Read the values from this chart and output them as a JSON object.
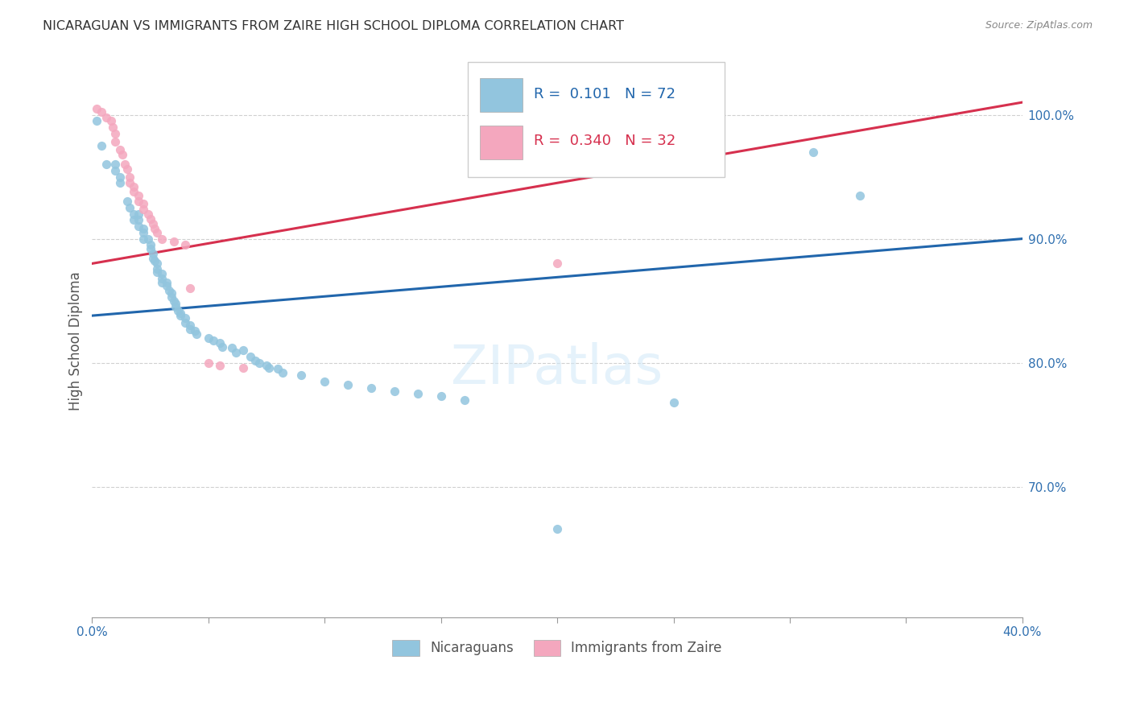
{
  "title": "NICARAGUAN VS IMMIGRANTS FROM ZAIRE HIGH SCHOOL DIPLOMA CORRELATION CHART",
  "source": "Source: ZipAtlas.com",
  "ylabel": "High School Diploma",
  "legend_blue_r": "0.101",
  "legend_blue_n": "72",
  "legend_pink_r": "0.340",
  "legend_pink_n": "32",
  "blue_color": "#92c5de",
  "pink_color": "#f4a7be",
  "blue_line_color": "#2166ac",
  "pink_line_color": "#d6304e",
  "x_min": 0.0,
  "x_max": 0.4,
  "y_min": 0.595,
  "y_max": 1.04,
  "y_ticks": [
    0.7,
    0.8,
    0.9,
    1.0
  ],
  "y_tick_labels": [
    "70.0%",
    "80.0%",
    "90.0%",
    "100.0%"
  ],
  "blue_scatter": [
    [
      0.002,
      0.995
    ],
    [
      0.004,
      0.975
    ],
    [
      0.006,
      0.96
    ],
    [
      0.01,
      0.955
    ],
    [
      0.01,
      0.96
    ],
    [
      0.012,
      0.945
    ],
    [
      0.012,
      0.95
    ],
    [
      0.015,
      0.93
    ],
    [
      0.016,
      0.925
    ],
    [
      0.018,
      0.92
    ],
    [
      0.018,
      0.915
    ],
    [
      0.02,
      0.92
    ],
    [
      0.02,
      0.915
    ],
    [
      0.02,
      0.91
    ],
    [
      0.022,
      0.908
    ],
    [
      0.022,
      0.905
    ],
    [
      0.022,
      0.9
    ],
    [
      0.024,
      0.9
    ],
    [
      0.025,
      0.895
    ],
    [
      0.025,
      0.892
    ],
    [
      0.026,
      0.888
    ],
    [
      0.026,
      0.884
    ],
    [
      0.027,
      0.882
    ],
    [
      0.028,
      0.88
    ],
    [
      0.028,
      0.876
    ],
    [
      0.028,
      0.873
    ],
    [
      0.03,
      0.872
    ],
    [
      0.03,
      0.868
    ],
    [
      0.03,
      0.865
    ],
    [
      0.032,
      0.865
    ],
    [
      0.032,
      0.862
    ],
    [
      0.033,
      0.858
    ],
    [
      0.034,
      0.856
    ],
    [
      0.034,
      0.853
    ],
    [
      0.035,
      0.85
    ],
    [
      0.036,
      0.848
    ],
    [
      0.036,
      0.845
    ],
    [
      0.037,
      0.842
    ],
    [
      0.038,
      0.84
    ],
    [
      0.038,
      0.838
    ],
    [
      0.04,
      0.836
    ],
    [
      0.04,
      0.832
    ],
    [
      0.042,
      0.83
    ],
    [
      0.042,
      0.827
    ],
    [
      0.044,
      0.826
    ],
    [
      0.045,
      0.823
    ],
    [
      0.05,
      0.82
    ],
    [
      0.052,
      0.818
    ],
    [
      0.055,
      0.816
    ],
    [
      0.056,
      0.813
    ],
    [
      0.06,
      0.812
    ],
    [
      0.062,
      0.808
    ],
    [
      0.065,
      0.81
    ],
    [
      0.068,
      0.805
    ],
    [
      0.07,
      0.802
    ],
    [
      0.072,
      0.8
    ],
    [
      0.075,
      0.798
    ],
    [
      0.076,
      0.796
    ],
    [
      0.08,
      0.795
    ],
    [
      0.082,
      0.792
    ],
    [
      0.09,
      0.79
    ],
    [
      0.1,
      0.785
    ],
    [
      0.11,
      0.782
    ],
    [
      0.12,
      0.78
    ],
    [
      0.13,
      0.777
    ],
    [
      0.14,
      0.775
    ],
    [
      0.15,
      0.773
    ],
    [
      0.16,
      0.77
    ],
    [
      0.2,
      0.666
    ],
    [
      0.25,
      0.768
    ],
    [
      0.31,
      0.97
    ],
    [
      0.33,
      0.935
    ]
  ],
  "pink_scatter": [
    [
      0.002,
      1.005
    ],
    [
      0.004,
      1.002
    ],
    [
      0.006,
      0.998
    ],
    [
      0.008,
      0.995
    ],
    [
      0.009,
      0.99
    ],
    [
      0.01,
      0.985
    ],
    [
      0.01,
      0.978
    ],
    [
      0.012,
      0.972
    ],
    [
      0.013,
      0.968
    ],
    [
      0.014,
      0.96
    ],
    [
      0.015,
      0.956
    ],
    [
      0.016,
      0.95
    ],
    [
      0.016,
      0.945
    ],
    [
      0.018,
      0.942
    ],
    [
      0.018,
      0.938
    ],
    [
      0.02,
      0.935
    ],
    [
      0.02,
      0.93
    ],
    [
      0.022,
      0.928
    ],
    [
      0.022,
      0.924
    ],
    [
      0.024,
      0.92
    ],
    [
      0.025,
      0.916
    ],
    [
      0.026,
      0.912
    ],
    [
      0.027,
      0.908
    ],
    [
      0.028,
      0.905
    ],
    [
      0.03,
      0.9
    ],
    [
      0.035,
      0.898
    ],
    [
      0.04,
      0.895
    ],
    [
      0.042,
      0.86
    ],
    [
      0.05,
      0.8
    ],
    [
      0.055,
      0.798
    ],
    [
      0.065,
      0.796
    ],
    [
      0.2,
      0.88
    ]
  ],
  "blue_line_x": [
    0.0,
    0.4
  ],
  "blue_line_y": [
    0.838,
    0.9
  ],
  "pink_line_x": [
    0.0,
    0.4
  ],
  "pink_line_y": [
    0.88,
    1.01
  ]
}
